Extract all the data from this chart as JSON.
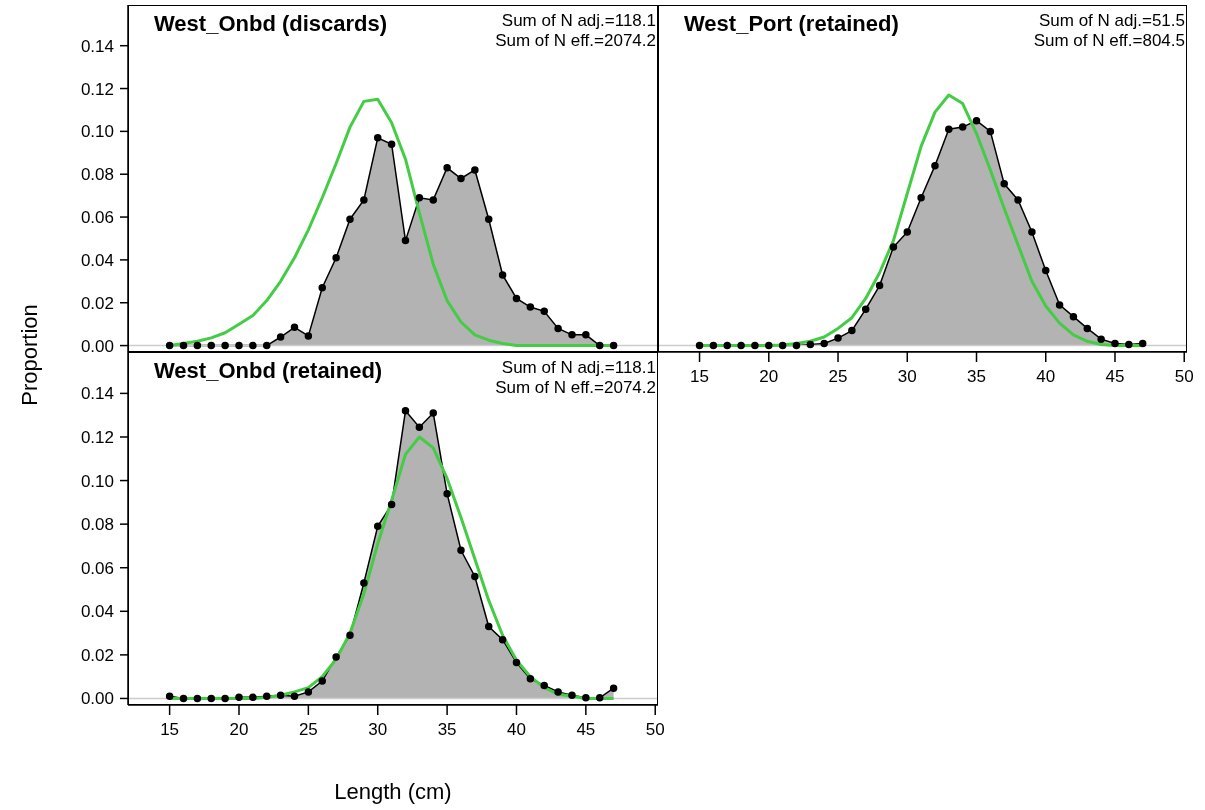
{
  "chart_data": [
    {
      "type": "area",
      "title": "West_Onbd (discards)",
      "annotations": [
        "Sum of N adj.=118.1",
        "Sum of N eff.=2074.2"
      ],
      "x": [
        15,
        16,
        17,
        18,
        19,
        20,
        21,
        22,
        23,
        24,
        25,
        26,
        27,
        28,
        29,
        30,
        31,
        32,
        33,
        34,
        35,
        36,
        37,
        38,
        39,
        40,
        41,
        42,
        43,
        44,
        45,
        46,
        47
      ],
      "xlim": [
        12,
        50.2
      ],
      "ylim": [
        -0.003,
        0.159
      ],
      "yticks": [
        {
          "value": 0,
          "label": "0.00"
        },
        {
          "value": 0.02,
          "label": "0.02"
        },
        {
          "value": 0.04,
          "label": "0.04"
        },
        {
          "value": 0.06,
          "label": "0.06"
        },
        {
          "value": 0.08,
          "label": "0.08"
        },
        {
          "value": 0.1,
          "label": "0.10"
        },
        {
          "value": 0.12,
          "label": "0.12"
        },
        {
          "value": 0.14,
          "label": "0.14"
        }
      ],
      "tick_labels": "y",
      "ref_lines": [
        {
          "axis": "y",
          "value": 0,
          "color": "#cccccc"
        }
      ],
      "series": [
        {
          "color": "#b3b3b3",
          "marker": "circle",
          "values": [
            0,
            0,
            0,
            0,
            0,
            0,
            0,
            0,
            0.004,
            0.0085,
            0.0045,
            0.027,
            0.041,
            0.059,
            0.068,
            0.097,
            0.094,
            0.049,
            0.069,
            0.068,
            0.083,
            0.078,
            0.082,
            0.059,
            0.033,
            0.022,
            0.018,
            0.016,
            0.008,
            0.005,
            0.005,
            0,
            0
          ]
        },
        {
          "type": "line",
          "color": "#44cc44",
          "marker": "none",
          "values": [
            0,
            0.001,
            0.002,
            0.0036,
            0.006,
            0.01,
            0.014,
            0.021,
            0.03,
            0.041,
            0.054,
            0.069,
            0.085,
            0.102,
            0.114,
            0.115,
            0.104,
            0.087,
            0.062,
            0.038,
            0.021,
            0.011,
            0.005,
            0.0025,
            0.001,
            0,
            0,
            0,
            0,
            0,
            0,
            0,
            0
          ]
        }
      ]
    },
    {
      "type": "area",
      "title": "West_Port (retained)",
      "annotations": [
        "Sum of N adj.=51.5",
        "Sum of N eff.=804.5"
      ],
      "x": [
        15,
        16,
        17,
        18,
        19,
        20,
        21,
        22,
        23,
        24,
        25,
        26,
        27,
        28,
        29,
        30,
        31,
        32,
        33,
        34,
        35,
        36,
        37,
        38,
        39,
        40,
        41,
        42,
        43,
        44,
        45,
        46,
        47
      ],
      "xlim": [
        12,
        50.2
      ],
      "ylim": [
        -0.003,
        0.159
      ],
      "xticks": [
        15,
        20,
        25,
        30,
        35,
        40,
        45,
        50
      ],
      "tick_labels": "x",
      "ref_lines": [
        {
          "axis": "y",
          "value": 0,
          "color": "#cccccc"
        }
      ],
      "series": [
        {
          "color": "#b3b3b3",
          "marker": "circle",
          "values": [
            0,
            0,
            0,
            0,
            0,
            0,
            0,
            0,
            0.0005,
            0.001,
            0.0035,
            0.007,
            0.017,
            0.028,
            0.046,
            0.053,
            0.069,
            0.084,
            0.101,
            0.102,
            0.105,
            0.1,
            0.0755,
            0.068,
            0.053,
            0.035,
            0.019,
            0.0135,
            0.008,
            0.003,
            0.001,
            0.0005,
            0.001
          ]
        },
        {
          "type": "line",
          "color": "#44cc44",
          "marker": "none",
          "values": [
            0,
            0,
            0,
            0,
            0,
            0,
            0.0003,
            0.001,
            0.002,
            0.004,
            0.008,
            0.013,
            0.022,
            0.034,
            0.049,
            0.071,
            0.093,
            0.109,
            0.117,
            0.113,
            0.099,
            0.082,
            0.064,
            0.047,
            0.03,
            0.0185,
            0.0105,
            0.005,
            0.002,
            0.0005,
            0,
            0,
            0
          ]
        }
      ]
    },
    {
      "type": "area",
      "title": "West_Onbd (retained)",
      "annotations": [
        "Sum of N adj.=118.1",
        "Sum of N eff.=2074.2"
      ],
      "xlabel": "Length (cm)",
      "ylabel": "Proportion",
      "x": [
        15,
        16,
        17,
        18,
        19,
        20,
        21,
        22,
        23,
        24,
        25,
        26,
        27,
        28,
        29,
        30,
        31,
        32,
        33,
        34,
        35,
        36,
        37,
        38,
        39,
        40,
        41,
        42,
        43,
        44,
        45,
        46,
        47
      ],
      "xlim": [
        12,
        50.2
      ],
      "ylim": [
        -0.003,
        0.159
      ],
      "xticks": [
        15,
        20,
        25,
        30,
        35,
        40,
        45,
        50
      ],
      "yticks": [
        {
          "value": 0,
          "label": "0.00"
        },
        {
          "value": 0.02,
          "label": "0.02"
        },
        {
          "value": 0.04,
          "label": "0.04"
        },
        {
          "value": 0.06,
          "label": "0.06"
        },
        {
          "value": 0.08,
          "label": "0.08"
        },
        {
          "value": 0.1,
          "label": "0.10"
        },
        {
          "value": 0.12,
          "label": "0.12"
        },
        {
          "value": 0.14,
          "label": "0.14"
        }
      ],
      "ref_lines": [
        {
          "axis": "y",
          "value": 0,
          "color": "#cccccc"
        }
      ],
      "series": [
        {
          "color": "#b3b3b3",
          "marker": "circle",
          "values": [
            0.001,
            0,
            0,
            0,
            0,
            0.0005,
            0.0005,
            0.001,
            0.0015,
            0.001,
            0.003,
            0.008,
            0.019,
            0.029,
            0.053,
            0.079,
            0.089,
            0.132,
            0.1245,
            0.131,
            0.094,
            0.068,
            0.056,
            0.033,
            0.027,
            0.0165,
            0.009,
            0.006,
            0.003,
            0.0015,
            0.0003,
            0.0003,
            0.0047
          ]
        },
        {
          "type": "line",
          "color": "#44cc44",
          "marker": "none",
          "values": [
            0,
            0,
            0,
            0,
            0,
            0,
            0,
            0.0005,
            0.0015,
            0.003,
            0.005,
            0.01,
            0.018,
            0.03,
            0.048,
            0.071,
            0.091,
            0.112,
            0.12,
            0.115,
            0.101,
            0.083,
            0.064,
            0.045,
            0.029,
            0.0175,
            0.01,
            0.005,
            0.002,
            0.001,
            0,
            0,
            0
          ]
        }
      ]
    }
  ]
}
